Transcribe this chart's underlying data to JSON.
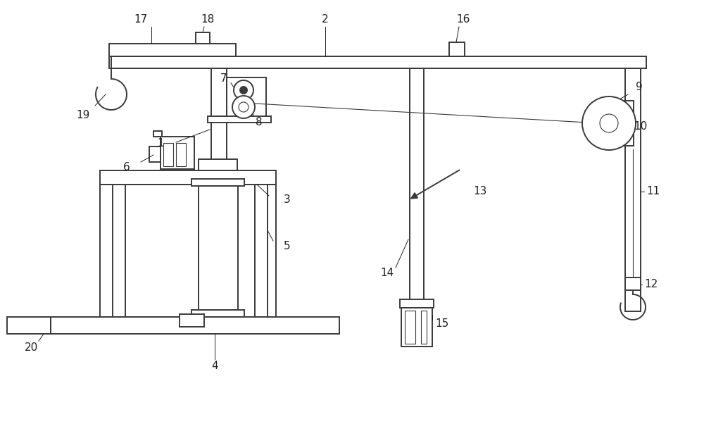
{
  "bg": "#ffffff",
  "lc": "#3a3a3a",
  "lw": 1.4,
  "tlw": 0.8,
  "fig_w": 10.0,
  "fig_h": 6.02,
  "xlim": [
    0,
    10
  ],
  "ylim": [
    0,
    6.02
  ],
  "label_fs": 11,
  "label_color": "#222222"
}
